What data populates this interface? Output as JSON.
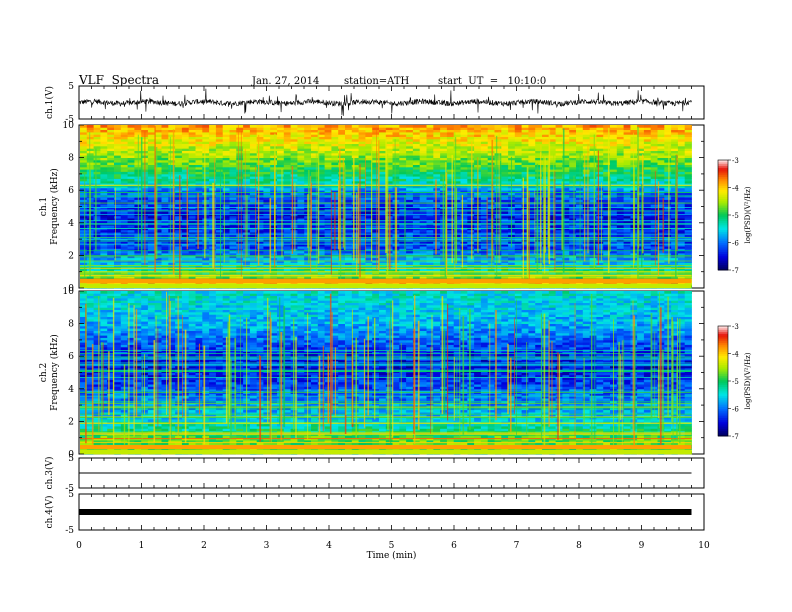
{
  "header": {
    "title": "VLF  Spectra",
    "date": "Jan. 27, 2014",
    "station": "station=ATH",
    "start_ut": "start  UT  =   10:10:0"
  },
  "chart_data": [
    {
      "type": "line",
      "panel": "ch1-waveform",
      "ylabel": "ch.1(V)",
      "ylim": [
        -5,
        5
      ],
      "yticks": [
        "5",
        "-5"
      ],
      "xlim": [
        0,
        10
      ],
      "trace_extent_min": 9.8,
      "baseline_v": 0,
      "color": "#000000"
    },
    {
      "type": "heatmap",
      "panel": "ch1-spectrogram",
      "ylabel_line1": "ch.1",
      "ylabel_line2": "Frequency  (kHz)",
      "ylim": [
        0,
        10
      ],
      "yticks": [
        "0",
        "2",
        "4",
        "6",
        "8",
        "10"
      ],
      "xlim": [
        0,
        10
      ],
      "data_extent_min": 9.8,
      "colorbar": {
        "label": "log(PSD)(V²/Hz)",
        "range": [
          -7,
          -3
        ],
        "ticks": [
          "-3",
          "-4",
          "-5",
          "-6",
          "-7"
        ]
      },
      "level_profile": [
        {
          "f": 0.0,
          "v": -5.5
        },
        {
          "f": 0.3,
          "v": -3.8
        },
        {
          "f": 0.7,
          "v": -4.8
        },
        {
          "f": 1.5,
          "v": -5.6
        },
        {
          "f": 2.5,
          "v": -6.2
        },
        {
          "f": 4.5,
          "v": -6.4
        },
        {
          "f": 5.9,
          "v": -6.0
        },
        {
          "f": 6.5,
          "v": -5.3
        },
        {
          "f": 8.0,
          "v": -4.6
        },
        {
          "f": 10.0,
          "v": -3.8
        }
      ]
    },
    {
      "type": "heatmap",
      "panel": "ch2-spectrogram",
      "ylabel_line1": "ch.2",
      "ylabel_line2": "Frequency  (kHz)",
      "ylim": [
        0,
        10
      ],
      "yticks": [
        "0",
        "2",
        "4",
        "6",
        "8",
        "10"
      ],
      "xlim": [
        0,
        10
      ],
      "data_extent_min": 9.8,
      "colorbar": {
        "label": "log(PSD)(V²/Hz)",
        "range": [
          -7,
          -3
        ],
        "ticks": [
          "-3",
          "-4",
          "-5",
          "-6",
          "-7"
        ]
      },
      "level_profile": [
        {
          "f": 0.0,
          "v": -4.6
        },
        {
          "f": 1.0,
          "v": -4.8
        },
        {
          "f": 2.0,
          "v": -5.5
        },
        {
          "f": 3.5,
          "v": -6.0
        },
        {
          "f": 5.5,
          "v": -6.5
        },
        {
          "f": 6.5,
          "v": -6.2
        },
        {
          "f": 8.0,
          "v": -5.7
        },
        {
          "f": 10.0,
          "v": -5.4
        }
      ]
    },
    {
      "type": "line",
      "panel": "ch3-waveform",
      "ylabel": "ch.3(V)",
      "ylim": [
        -5,
        5
      ],
      "yticks": [
        "5",
        "-5"
      ],
      "xlim": [
        0,
        10
      ],
      "trace_extent_min": 9.8,
      "baseline_v": 0,
      "color": "#000000"
    },
    {
      "type": "line",
      "panel": "ch4-waveform",
      "ylabel": "ch.4(V)",
      "ylim": [
        -5,
        5
      ],
      "yticks": [
        "5",
        "-5"
      ],
      "xlim": [
        0,
        10
      ],
      "xlabel": "Time  (min)",
      "xticks": [
        "0",
        "1",
        "2",
        "3",
        "4",
        "5",
        "6",
        "7",
        "8",
        "9",
        "10"
      ],
      "trace_extent_min": 9.8,
      "baseline_v": 0,
      "color": "#000000"
    }
  ]
}
